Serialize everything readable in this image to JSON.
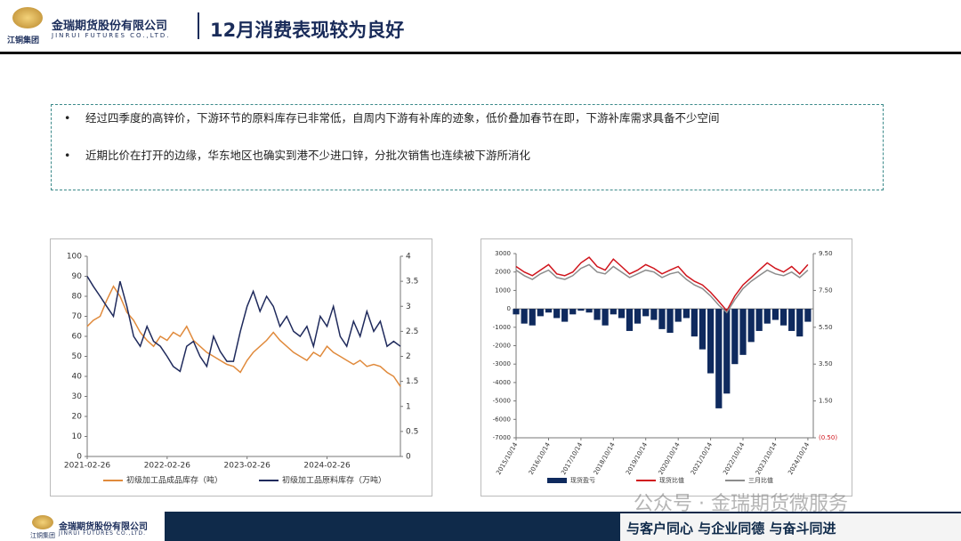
{
  "header": {
    "title": "12月消费表现较为良好",
    "company": "金瑞期货股份有限公司",
    "company_en": "JINRUI FUTURES CO.,LTD.",
    "group": "江铜集团"
  },
  "bullets": [
    "经过四季度的高锌价，下游环节的原料库存已非常低，自周内下游有补库的迹象，低价叠加春节在即，下游补库需求具备不少空间",
    "近期比价在打开的边缘，华东地区也确实到港不少进口锌，分批次销售也连续被下游所消化"
  ],
  "footer": {
    "company": "金瑞期货股份有限公司",
    "company_en": "JINRUI FUTURES CO.,LTD.",
    "group": "江铜集团",
    "slogan": "与客户同心 与企业同德 与奋斗同进",
    "watermark": "公众号 · 金瑞期货微服务"
  },
  "chart_data": [
    {
      "type": "line",
      "x": [
        "2021-02-26",
        "2021-03-26",
        "2021-04-26",
        "2021-05-26",
        "2021-06-26",
        "2021-07-26",
        "2021-08-26",
        "2021-09-26",
        "2021-10-26",
        "2021-11-26",
        "2021-12-26",
        "2022-01-26",
        "2022-02-26",
        "2022-03-26",
        "2022-04-26",
        "2022-05-26",
        "2022-06-26",
        "2022-07-26",
        "2022-08-26",
        "2022-09-26",
        "2022-10-26",
        "2022-11-26",
        "2022-12-26",
        "2023-01-26",
        "2023-02-26",
        "2023-03-26",
        "2023-04-26",
        "2023-05-26",
        "2023-06-26",
        "2023-07-26",
        "2023-08-26",
        "2023-09-26",
        "2023-10-26",
        "2023-11-26",
        "2023-12-26",
        "2024-01-26",
        "2024-02-26",
        "2024-03-26",
        "2024-04-26",
        "2024-05-26",
        "2024-06-26",
        "2024-07-26",
        "2024-08-26",
        "2024-09-26",
        "2024-10-26",
        "2024-11-26",
        "2024-12-26",
        "2025-01-26"
      ],
      "xlim": [
        "2021-02-26",
        "2025-01-26"
      ],
      "xticks": [
        "2021-02-26",
        "2022-02-26",
        "2023-02-26",
        "2024-02-26"
      ],
      "ylim": [
        0,
        100
      ],
      "yticks": [
        0,
        10,
        20,
        30,
        40,
        50,
        60,
        70,
        80,
        90,
        100
      ],
      "y2lim": [
        0,
        4
      ],
      "y2ticks": [
        0,
        0.5,
        1,
        1.5,
        2,
        2.5,
        3,
        3.5,
        4
      ],
      "series": [
        {
          "name": "初级加工品成品库存（吨）",
          "color": "#e08a3c",
          "values": [
            65,
            68,
            70,
            78,
            85,
            80,
            72,
            68,
            62,
            58,
            55,
            60,
            58,
            62,
            60,
            65,
            58,
            55,
            52,
            50,
            48,
            46,
            45,
            42,
            48,
            52,
            55,
            58,
            62,
            58,
            55,
            52,
            50,
            48,
            52,
            50,
            55,
            52,
            50,
            48,
            46,
            48,
            45,
            46,
            45,
            42,
            40,
            35
          ]
        },
        {
          "name": "初级加工品原料库存（万吨）",
          "color": "#1f2a5c",
          "axis": "y2",
          "values": [
            3.6,
            3.4,
            3.2,
            3.0,
            2.8,
            3.5,
            3.0,
            2.4,
            2.2,
            2.6,
            2.3,
            2.2,
            2.0,
            1.8,
            1.7,
            2.2,
            2.3,
            2.0,
            1.8,
            2.4,
            2.1,
            1.9,
            1.9,
            2.5,
            3.0,
            3.3,
            2.9,
            3.2,
            3.0,
            2.6,
            2.8,
            2.5,
            2.4,
            2.6,
            2.2,
            2.8,
            2.6,
            3.0,
            2.4,
            2.2,
            2.7,
            2.4,
            2.9,
            2.5,
            2.7,
            2.2,
            2.3,
            2.2
          ]
        }
      ]
    },
    {
      "type": "combo",
      "x": [
        "2015/10/14",
        "2016/01/14",
        "2016/04/14",
        "2016/07/14",
        "2016/10/14",
        "2017/01/14",
        "2017/04/14",
        "2017/07/14",
        "2017/10/14",
        "2018/01/14",
        "2018/04/14",
        "2018/07/14",
        "2018/10/14",
        "2019/01/14",
        "2019/04/14",
        "2019/07/14",
        "2019/10/14",
        "2020/01/14",
        "2020/04/14",
        "2020/07/14",
        "2020/10/14",
        "2021/01/14",
        "2021/04/14",
        "2021/07/14",
        "2021/10/14",
        "2022/01/14",
        "2022/04/14",
        "2022/07/14",
        "2022/10/14",
        "2023/01/14",
        "2023/04/14",
        "2023/07/14",
        "2023/10/14",
        "2024/01/14",
        "2024/04/14",
        "2024/07/14",
        "2024/10/14"
      ],
      "xlim": [
        "2015/10/14",
        "2024/12/14"
      ],
      "xticks": [
        "2015/10/14",
        "2016/10/14",
        "2017/10/14",
        "2018/10/14",
        "2019/10/14",
        "2020/10/14",
        "2021/10/14",
        "2022/10/14",
        "2023/10/14",
        "2024/10/14"
      ],
      "ylim": [
        -7000,
        3000
      ],
      "yticks": [
        -7000,
        -6000,
        -5000,
        -4000,
        -3000,
        -2000,
        -1000,
        0,
        1000,
        2000,
        3000
      ],
      "y2lim": [
        -0.5,
        9.5
      ],
      "y2ticks": [
        {
          "value": 9.5,
          "label": "9.50"
        },
        {
          "value": 7.5,
          "label": "7.50"
        },
        {
          "value": 5.5,
          "label": "5.50"
        },
        {
          "value": 3.5,
          "label": "3.50"
        },
        {
          "value": 1.5,
          "label": "1.50"
        },
        {
          "value": -0.5,
          "label": "(0.50)"
        }
      ],
      "series": [
        {
          "name": "现货盈亏",
          "type": "bar",
          "color": "#0f2a5e",
          "values": [
            -300,
            -800,
            -900,
            -400,
            -200,
            -500,
            -700,
            -300,
            -100,
            -200,
            -600,
            -900,
            -300,
            -500,
            -1200,
            -800,
            -400,
            -600,
            -1100,
            -1300,
            -700,
            -500,
            -1500,
            -2200,
            -3500,
            -5400,
            -4600,
            -3000,
            -2500,
            -1800,
            -1200,
            -800,
            -600,
            -900,
            -1200,
            -1500,
            -700
          ]
        },
        {
          "name": "现货比值",
          "type": "line",
          "axis": "y2",
          "color": "#d0141c",
          "values": [
            8.8,
            8.5,
            8.3,
            8.6,
            8.9,
            8.4,
            8.3,
            8.5,
            9.0,
            9.3,
            8.8,
            8.6,
            9.2,
            8.8,
            8.4,
            8.6,
            8.9,
            8.7,
            8.4,
            8.6,
            8.8,
            8.3,
            8.0,
            7.8,
            7.4,
            6.9,
            6.4,
            7.2,
            7.8,
            8.2,
            8.6,
            9.0,
            8.7,
            8.5,
            8.8,
            8.4,
            8.9
          ]
        },
        {
          "name": "三月比值",
          "type": "line",
          "axis": "y2",
          "color": "#8c8c8c",
          "values": [
            8.6,
            8.3,
            8.1,
            8.4,
            8.6,
            8.2,
            8.1,
            8.3,
            8.7,
            8.9,
            8.5,
            8.4,
            8.8,
            8.5,
            8.2,
            8.4,
            8.6,
            8.5,
            8.2,
            8.4,
            8.5,
            8.1,
            7.8,
            7.6,
            7.2,
            6.7,
            6.3,
            7.0,
            7.6,
            8.0,
            8.3,
            8.6,
            8.4,
            8.3,
            8.5,
            8.2,
            8.6
          ]
        }
      ]
    }
  ]
}
